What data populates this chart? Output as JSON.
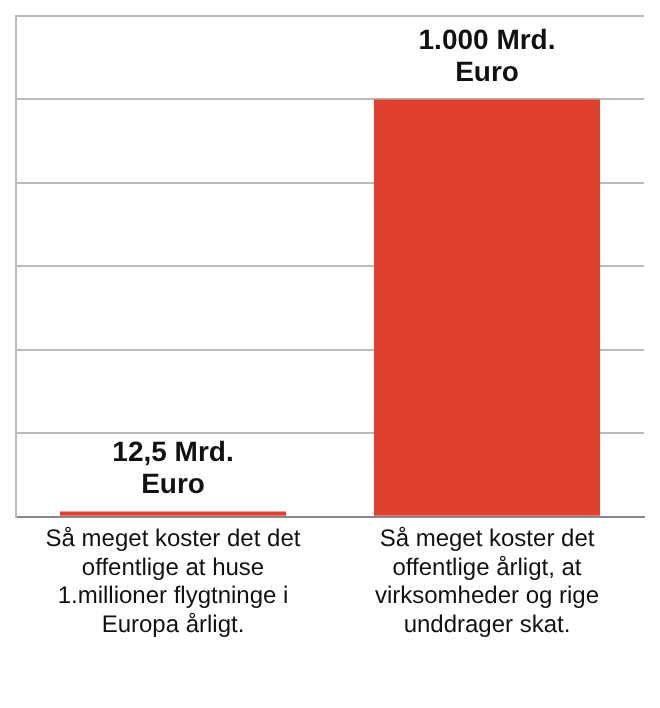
{
  "chart_data": {
    "type": "bar",
    "categories": [
      "Så meget koster det det offentlige at huse 1.millioner flygtninge i Europa årligt.",
      "Så meget koster det offentlige årligt, at virksomheder og rige unddrager skat."
    ],
    "values": [
      12.5,
      1000
    ],
    "color": "#e0402e",
    "value_labels": [
      "12,5 Mrd.\nEuro",
      "1.000 Mrd.\nEuro"
    ],
    "grid": "y",
    "legend": false
  }
}
